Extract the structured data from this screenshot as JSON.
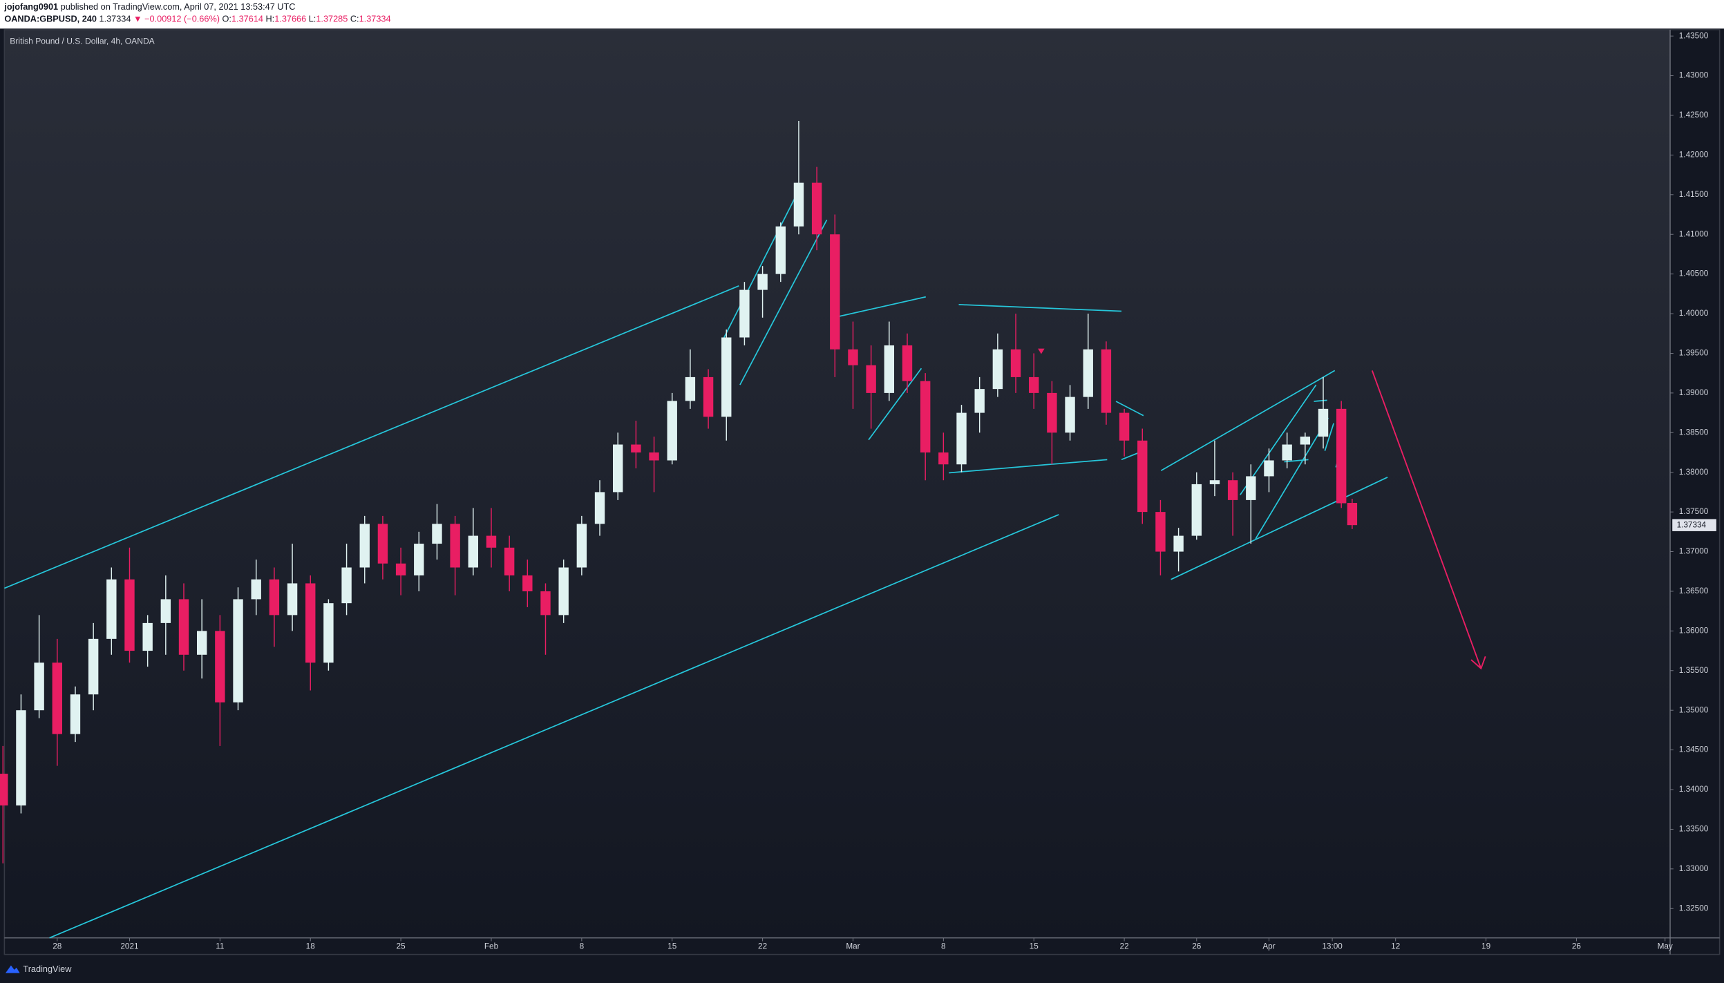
{
  "header": {
    "author": "jojofang0901",
    "published": "published on TradingView.com, April 07, 2021 13:53:47 UTC",
    "symbol": "OANDA:GBPUSD, 240",
    "change": "▼ −0.00912 (−0.66%)",
    "o_label": "O:",
    "h_label": "H:",
    "l_label": "L:",
    "c_label": "C:"
  },
  "footer": {
    "brand": "TradingView"
  },
  "chart_data": {
    "type": "candlestick",
    "title": "British Pound / U.S. Dollar, 4h, OANDA",
    "up_color": "#e0f2f1",
    "down_color": "#e91e63",
    "x": [
      -3,
      -2,
      -1,
      0,
      1,
      2,
      3,
      4,
      5,
      6,
      7,
      8,
      9,
      10,
      11,
      12,
      13,
      14,
      15,
      16,
      17,
      18,
      19,
      20,
      21,
      22,
      23,
      24,
      25,
      26,
      27,
      28,
      29,
      30,
      31,
      32,
      33,
      34,
      35,
      36,
      37,
      38,
      39,
      40,
      41,
      42,
      43,
      44,
      45,
      46,
      47,
      48,
      49,
      50,
      51,
      52,
      53,
      54,
      55,
      56,
      57,
      58,
      59,
      60,
      61,
      62,
      63,
      64,
      65,
      66,
      67,
      68,
      69,
      70,
      71,
      71.6
    ],
    "open": [
      1.342,
      1.338,
      1.35,
      1.356,
      1.347,
      1.352,
      1.359,
      1.3665,
      1.3575,
      1.361,
      1.364,
      1.357,
      1.36,
      1.351,
      1.364,
      1.3665,
      1.362,
      1.366,
      1.356,
      1.3635,
      1.368,
      1.3735,
      1.3685,
      1.367,
      1.371,
      1.3735,
      1.368,
      1.372,
      1.3705,
      1.367,
      1.365,
      1.362,
      1.368,
      1.3735,
      1.3775,
      1.3835,
      1.3825,
      1.3815,
      1.389,
      1.392,
      1.387,
      1.397,
      1.403,
      1.405,
      1.411,
      1.4165,
      1.41,
      1.3955,
      1.3935,
      1.39,
      1.396,
      1.3915,
      1.3825,
      1.381,
      1.3875,
      1.3905,
      1.3955,
      1.392,
      1.39,
      1.385,
      1.3895,
      1.3955,
      1.3875,
      1.384,
      1.375,
      1.37,
      1.372,
      1.3785,
      1.379,
      1.3765,
      1.3795,
      1.3815,
      1.3835,
      1.3845,
      1.388,
      1.37614
    ],
    "high": [
      1.3455,
      1.352,
      1.362,
      1.359,
      1.353,
      1.361,
      1.368,
      1.3705,
      1.362,
      1.367,
      1.366,
      1.364,
      1.362,
      1.3655,
      1.369,
      1.368,
      1.371,
      1.367,
      1.364,
      1.371,
      1.3745,
      1.3745,
      1.3705,
      1.3725,
      1.376,
      1.3745,
      1.3755,
      1.3755,
      1.372,
      1.369,
      1.366,
      1.369,
      1.3745,
      1.379,
      1.385,
      1.3865,
      1.3845,
      1.39,
      1.3955,
      1.393,
      1.398,
      1.404,
      1.406,
      1.4115,
      1.4243,
      1.4185,
      1.4125,
      1.399,
      1.396,
      1.399,
      1.3975,
      1.3925,
      1.385,
      1.3885,
      1.392,
      1.3975,
      1.4,
      1.395,
      1.3915,
      1.391,
      1.4,
      1.3965,
      1.388,
      1.3855,
      1.3765,
      1.373,
      1.38,
      1.384,
      1.38,
      1.381,
      1.383,
      1.385,
      1.385,
      1.392,
      1.389,
      1.37666
    ],
    "low": [
      1.3307,
      1.337,
      1.349,
      1.343,
      1.346,
      1.35,
      1.357,
      1.356,
      1.3555,
      1.357,
      1.355,
      1.354,
      1.3455,
      1.35,
      1.362,
      1.358,
      1.36,
      1.3525,
      1.355,
      1.362,
      1.366,
      1.3665,
      1.3645,
      1.365,
      1.369,
      1.3645,
      1.367,
      1.368,
      1.365,
      1.363,
      1.357,
      1.361,
      1.367,
      1.372,
      1.3765,
      1.3805,
      1.3775,
      1.381,
      1.388,
      1.3855,
      1.384,
      1.396,
      1.3995,
      1.404,
      1.41,
      1.408,
      1.392,
      1.388,
      1.3855,
      1.389,
      1.39,
      1.379,
      1.379,
      1.38,
      1.385,
      1.3895,
      1.39,
      1.388,
      1.381,
      1.384,
      1.388,
      1.386,
      1.382,
      1.3735,
      1.367,
      1.3675,
      1.3715,
      1.377,
      1.372,
      1.371,
      1.3775,
      1.3805,
      1.381,
      1.383,
      1.3755,
      1.37285
    ],
    "close": [
      1.338,
      1.35,
      1.356,
      1.347,
      1.352,
      1.359,
      1.3665,
      1.3575,
      1.361,
      1.364,
      1.357,
      1.36,
      1.351,
      1.364,
      1.3665,
      1.362,
      1.366,
      1.356,
      1.3635,
      1.368,
      1.3735,
      1.3685,
      1.367,
      1.371,
      1.3735,
      1.368,
      1.372,
      1.3705,
      1.367,
      1.365,
      1.362,
      1.368,
      1.3735,
      1.3775,
      1.3835,
      1.3825,
      1.3815,
      1.389,
      1.392,
      1.387,
      1.397,
      1.403,
      1.405,
      1.411,
      1.4165,
      1.41,
      1.3955,
      1.3935,
      1.39,
      1.396,
      1.3915,
      1.3825,
      1.381,
      1.3875,
      1.3905,
      1.3955,
      1.392,
      1.39,
      1.385,
      1.3895,
      1.3955,
      1.3875,
      1.384,
      1.375,
      1.37,
      1.372,
      1.3785,
      1.379,
      1.3765,
      1.3795,
      1.3815,
      1.3835,
      1.3845,
      1.388,
      1.3761,
      1.37334
    ],
    "xlim": [
      -2.92,
      89.18
    ],
    "xticks": [
      {
        "value": 0,
        "label": "28"
      },
      {
        "value": 4,
        "label": "2021"
      },
      {
        "value": 9,
        "label": "11"
      },
      {
        "value": 14,
        "label": "18"
      },
      {
        "value": 19,
        "label": "25"
      },
      {
        "value": 24,
        "label": "Feb"
      },
      {
        "value": 29,
        "label": "8"
      },
      {
        "value": 34,
        "label": "15"
      },
      {
        "value": 39,
        "label": "22"
      },
      {
        "value": 44,
        "label": "Mar"
      },
      {
        "value": 49,
        "label": "8"
      },
      {
        "value": 54,
        "label": "15"
      },
      {
        "value": 59,
        "label": "22"
      },
      {
        "value": 63,
        "label": "26"
      },
      {
        "value": 67,
        "label": "Apr"
      },
      {
        "value": 70.5,
        "label": "13:00"
      },
      {
        "value": 74,
        "label": "12"
      },
      {
        "value": 79,
        "label": "19"
      },
      {
        "value": 84,
        "label": "26"
      },
      {
        "value": 88.9,
        "label": "May"
      }
    ],
    "ylim": [
      1.3213,
      1.4358
    ],
    "yticks": [
      {
        "value": 1.325,
        "label": "1.32500"
      },
      {
        "value": 1.33,
        "label": "1.33000"
      },
      {
        "value": 1.335,
        "label": "1.33500"
      },
      {
        "value": 1.34,
        "label": "1.34000"
      },
      {
        "value": 1.345,
        "label": "1.34500"
      },
      {
        "value": 1.35,
        "label": "1.35000"
      },
      {
        "value": 1.355,
        "label": "1.35500"
      },
      {
        "value": 1.36,
        "label": "1.36000"
      },
      {
        "value": 1.365,
        "label": "1.36500"
      },
      {
        "value": 1.37,
        "label": "1.37000"
      },
      {
        "value": 1.375,
        "label": "1.37500"
      },
      {
        "value": 1.38,
        "label": "1.38000"
      },
      {
        "value": 1.385,
        "label": "1.38500"
      },
      {
        "value": 1.39,
        "label": "1.39000"
      },
      {
        "value": 1.395,
        "label": "1.39500"
      },
      {
        "value": 1.4,
        "label": "1.40000"
      },
      {
        "value": 1.405,
        "label": "1.40500"
      },
      {
        "value": 1.41,
        "label": "1.41000"
      },
      {
        "value": 1.415,
        "label": "1.41500"
      },
      {
        "value": 1.42,
        "label": "1.42000"
      },
      {
        "value": 1.425,
        "label": "1.42500"
      },
      {
        "value": 1.43,
        "label": "1.43000"
      },
      {
        "value": 1.435,
        "label": "1.43500"
      }
    ]
  }
}
